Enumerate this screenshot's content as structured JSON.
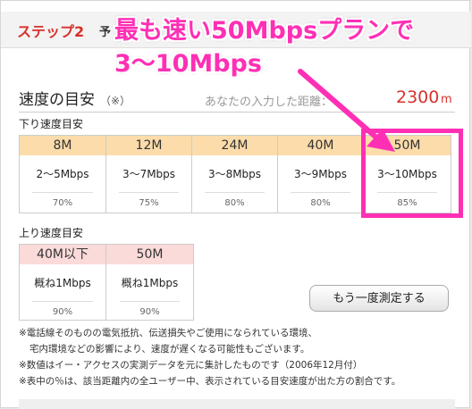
{
  "step": {
    "label": "ステップ2",
    "partial": "予"
  },
  "section_title": "速度の目安",
  "section_note": "（※）",
  "distance": {
    "label": "あなたの入力した距離：",
    "value": "2300",
    "unit": "m"
  },
  "download": {
    "label": "下り速度目安",
    "columns": [
      {
        "plan": "8M",
        "speed": "2〜5Mbps",
        "percent": "70%"
      },
      {
        "plan": "12M",
        "speed": "3〜7Mbps",
        "percent": "75%"
      },
      {
        "plan": "24M",
        "speed": "3〜8Mbps",
        "percent": "80%"
      },
      {
        "plan": "40M",
        "speed": "3〜9Mbps",
        "percent": "80%"
      },
      {
        "plan": "50M",
        "speed": "3〜10Mbps",
        "percent": "85%"
      }
    ]
  },
  "upload": {
    "label": "上り速度目安",
    "columns": [
      {
        "plan": "40M以下",
        "speed": "概ね1Mbps",
        "percent": "90%"
      },
      {
        "plan": "50M",
        "speed": "概ね1Mbps",
        "percent": "90%"
      }
    ]
  },
  "remeasure_button": "もう一度測定する",
  "notes": [
    "※電話線そのものの電気抵抗、伝送損失やご使用になられている環境、",
    "宅内環境などの影響により、速度が遅くなる可能性もございます。",
    "※数値はイー・アクセスの実測データを元に集計したものです（2006年12月付）",
    "※表中の％は、該当距離内の全ユーザー中、表示されている目安速度が出た方の割合です。"
  ],
  "annotation": {
    "line1": "最も速い50Mbpsプランで",
    "line2": "3〜10Mbps"
  },
  "colors": {
    "accent": "#d8312b",
    "annotation": "#ff2fb5",
    "download_header": "#fbdcaa",
    "upload_header": "#fbdada"
  }
}
